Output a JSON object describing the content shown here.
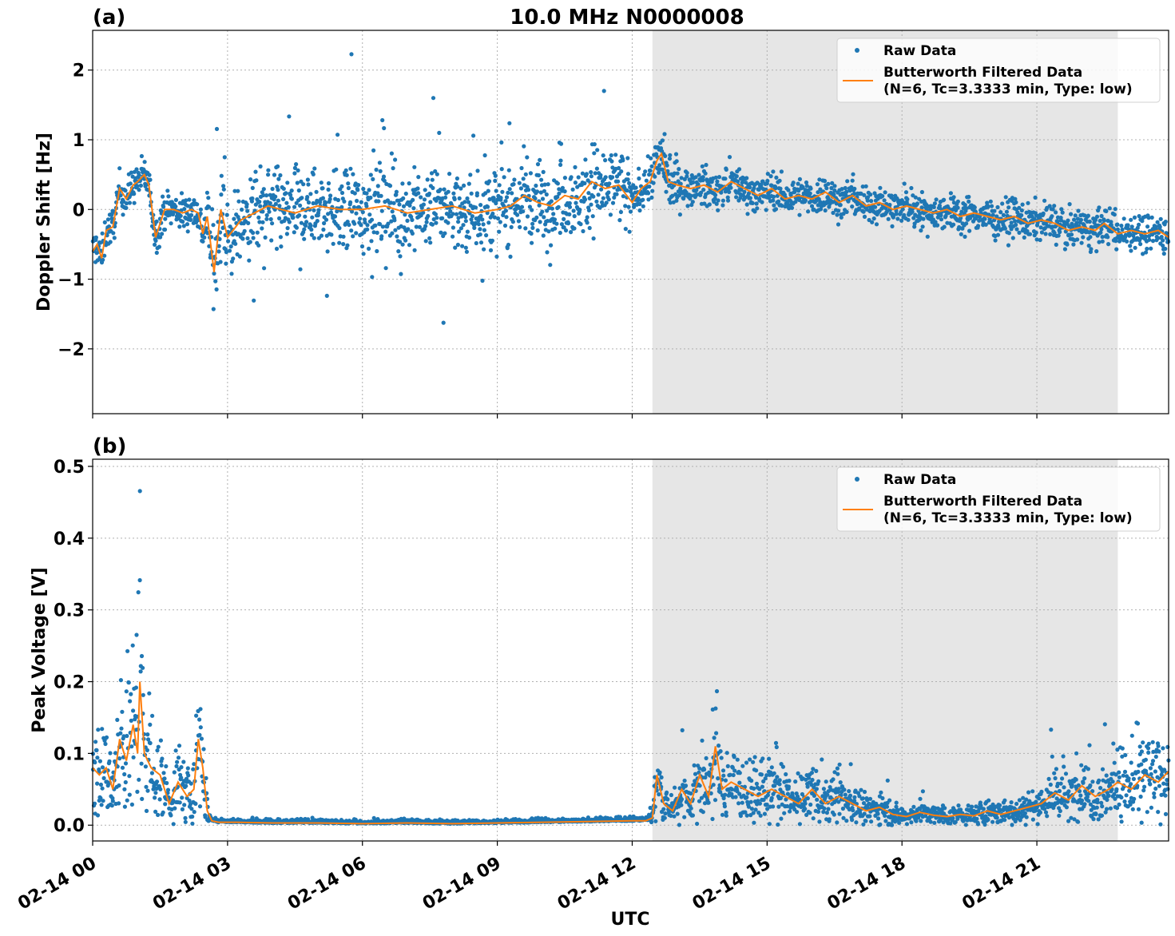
{
  "figure": {
    "title": "10.0 MHz N0000008",
    "xlabel": "UTC",
    "x_tick_labels": [
      "02-14 00",
      "02-14 03",
      "02-14 06",
      "02-14 09",
      "02-14 12",
      "02-14 15",
      "02-14 18",
      "02-14 21"
    ]
  },
  "colors": {
    "raw": "#1f77b4",
    "filtered": "#ff7f0e",
    "shade": "#e6e6e6",
    "grid": "#b0b0b0"
  },
  "chart_data": [
    {
      "type": "scatter",
      "panel_label": "(a)",
      "ylabel": "Doppler Shift [Hz]",
      "xlim_hours": [
        0,
        23.93
      ],
      "ylim": [
        -2.93,
        2.57
      ],
      "y_ticks": [
        2,
        1,
        0,
        -1,
        -2
      ],
      "y_tick_labels": [
        "2",
        "1",
        "0",
        "−1",
        "−2"
      ],
      "x_tick_hours": [
        0,
        3,
        6,
        9,
        12,
        15,
        18,
        21
      ],
      "grid": true,
      "legend_position": "upper-right",
      "shaded_interval_hours": [
        12.45,
        22.8
      ],
      "legend": {
        "raw_label": "Raw Data",
        "filtered_label_line1": "Butterworth Filtered Data",
        "filtered_label_line2": "(N=6, Tc=3.3333 min, Type: low)"
      },
      "series": [
        {
          "name": "Butterworth Filtered Data",
          "style": "line",
          "x": [
            0,
            0.1,
            0.2,
            0.3,
            0.45,
            0.6,
            0.75,
            0.9,
            1.0,
            1.15,
            1.25,
            1.4,
            1.6,
            1.8,
            2.0,
            2.2,
            2.35,
            2.45,
            2.55,
            2.7,
            2.85,
            3.0,
            3.3,
            3.6,
            3.9,
            4.2,
            4.5,
            5.0,
            5.5,
            6.0,
            6.5,
            7.0,
            7.5,
            8.0,
            8.5,
            9.0,
            9.3,
            9.6,
            9.9,
            10.2,
            10.5,
            10.8,
            11.1,
            11.4,
            11.7,
            12.0,
            12.2,
            12.4,
            12.55,
            12.65,
            12.8,
            13.0,
            13.3,
            13.6,
            13.9,
            14.2,
            14.5,
            14.8,
            15.1,
            15.4,
            15.7,
            16.0,
            16.3,
            16.6,
            16.9,
            17.2,
            17.5,
            17.8,
            18.1,
            18.4,
            18.7,
            19.0,
            19.3,
            19.6,
            19.9,
            20.2,
            20.5,
            20.8,
            21.1,
            21.4,
            21.7,
            22.0,
            22.3,
            22.5,
            22.8,
            23.1,
            23.4,
            23.7,
            23.93
          ],
          "y": [
            -0.6,
            -0.5,
            -0.7,
            -0.3,
            -0.25,
            0.3,
            0.15,
            0.35,
            0.4,
            0.5,
            0.35,
            -0.4,
            0.0,
            0.0,
            -0.05,
            0.0,
            -0.05,
            -0.35,
            -0.1,
            -0.9,
            0.0,
            -0.4,
            -0.15,
            -0.05,
            0.05,
            0.0,
            -0.05,
            0.05,
            0.0,
            0.0,
            0.05,
            -0.05,
            0.0,
            0.05,
            -0.05,
            0.0,
            0.05,
            0.2,
            0.1,
            0.05,
            0.2,
            0.15,
            0.4,
            0.3,
            0.35,
            0.1,
            0.3,
            0.4,
            0.7,
            0.8,
            0.4,
            0.35,
            0.3,
            0.35,
            0.25,
            0.4,
            0.3,
            0.2,
            0.3,
            0.15,
            0.2,
            0.15,
            0.25,
            0.1,
            0.2,
            0.05,
            0.1,
            0.0,
            0.05,
            0.0,
            -0.05,
            0.0,
            -0.1,
            -0.05,
            -0.1,
            -0.15,
            -0.1,
            -0.2,
            -0.15,
            -0.2,
            -0.3,
            -0.25,
            -0.3,
            -0.2,
            -0.35,
            -0.3,
            -0.35,
            -0.3,
            -0.4
          ]
        }
      ]
    },
    {
      "type": "scatter",
      "panel_label": "(b)",
      "ylabel": "Peak Voltage [V]",
      "xlim_hours": [
        0,
        23.93
      ],
      "ylim": [
        -0.022,
        0.51
      ],
      "y_ticks": [
        0.5,
        0.4,
        0.3,
        0.2,
        0.1,
        0.0
      ],
      "y_tick_labels": [
        "0.5",
        "0.4",
        "0.3",
        "0.2",
        "0.1",
        "0.0"
      ],
      "x_tick_hours": [
        0,
        3,
        6,
        9,
        12,
        15,
        18,
        21
      ],
      "grid": true,
      "legend_position": "upper-right",
      "shaded_interval_hours": [
        12.45,
        22.8
      ],
      "legend": {
        "raw_label": "Raw Data",
        "filtered_label_line1": "Butterworth Filtered Data",
        "filtered_label_line2": "(N=6, Tc=3.3333 min, Type: low)"
      },
      "series": [
        {
          "name": "Butterworth Filtered Data",
          "style": "line",
          "x": [
            0,
            0.15,
            0.3,
            0.45,
            0.6,
            0.75,
            0.9,
            1.0,
            1.05,
            1.15,
            1.3,
            1.5,
            1.7,
            1.9,
            2.1,
            2.25,
            2.35,
            2.45,
            2.55,
            2.65,
            2.8,
            3.2,
            4.0,
            5.0,
            6.0,
            7.0,
            8.0,
            9.0,
            10.0,
            11.0,
            12.0,
            12.3,
            12.45,
            12.55,
            12.7,
            12.9,
            13.1,
            13.3,
            13.5,
            13.7,
            13.85,
            14.0,
            14.2,
            14.5,
            14.8,
            15.1,
            15.4,
            15.7,
            16.0,
            16.3,
            16.6,
            16.9,
            17.2,
            17.5,
            17.8,
            18.1,
            18.4,
            18.7,
            19.0,
            19.3,
            19.6,
            19.9,
            20.2,
            20.5,
            20.8,
            21.1,
            21.4,
            21.7,
            22.0,
            22.3,
            22.6,
            22.8,
            23.1,
            23.4,
            23.7,
            23.93
          ],
          "y": [
            0.08,
            0.07,
            0.08,
            0.05,
            0.12,
            0.09,
            0.14,
            0.1,
            0.2,
            0.1,
            0.08,
            0.07,
            0.03,
            0.06,
            0.04,
            0.05,
            0.12,
            0.08,
            0.02,
            0.006,
            0.004,
            0.004,
            0.003,
            0.003,
            0.002,
            0.003,
            0.002,
            0.003,
            0.004,
            0.005,
            0.006,
            0.006,
            0.01,
            0.07,
            0.03,
            0.02,
            0.05,
            0.03,
            0.07,
            0.04,
            0.11,
            0.05,
            0.06,
            0.05,
            0.04,
            0.05,
            0.04,
            0.03,
            0.05,
            0.03,
            0.04,
            0.03,
            0.02,
            0.025,
            0.015,
            0.012,
            0.018,
            0.014,
            0.012,
            0.015,
            0.013,
            0.02,
            0.015,
            0.02,
            0.025,
            0.03,
            0.045,
            0.035,
            0.055,
            0.04,
            0.05,
            0.06,
            0.05,
            0.07,
            0.06,
            0.075
          ]
        }
      ]
    }
  ]
}
